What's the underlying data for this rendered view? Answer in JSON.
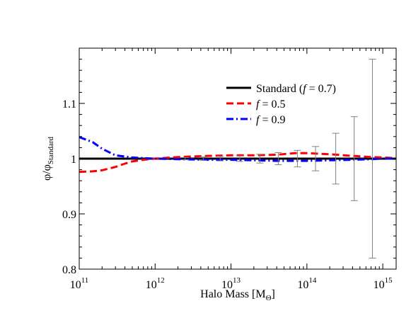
{
  "chart_data": {
    "type": "line",
    "xlabel": "Halo Mass [M",
    "xlabel_sub": "Θ",
    "xlabel_close": "]",
    "ylabel": "φ/φ",
    "ylabel_sub": "Standard",
    "x_scale": "log",
    "xlim": [
      100000000000.0,
      1500000000000000.0
    ],
    "ylim": [
      0.8,
      1.2
    ],
    "x_ticks": [
      {
        "base": "10",
        "exp": "11",
        "value": 100000000000.0
      },
      {
        "base": "10",
        "exp": "12",
        "value": 1000000000000.0
      },
      {
        "base": "10",
        "exp": "13",
        "value": 10000000000000.0
      },
      {
        "base": "10",
        "exp": "14",
        "value": 100000000000000.0
      },
      {
        "base": "10",
        "exp": "15",
        "value": 1000000000000000.0
      }
    ],
    "y_ticks": [
      {
        "label": "0.8",
        "value": 0.8
      },
      {
        "label": "0.9",
        "value": 0.9
      },
      {
        "label": "1",
        "value": 1.0
      },
      {
        "label": "1.1",
        "value": 1.1
      }
    ],
    "grid": false,
    "legend_position": "top-right",
    "series": [
      {
        "name_pre": "Standard (",
        "name_var": "f",
        "name_post": " = 0.7)",
        "color": "#000000",
        "style": "solid",
        "x": [
          100000000000.0,
          1500000000000000.0
        ],
        "y": [
          1.0,
          1.0
        ]
      },
      {
        "name_pre": "",
        "name_var": "f",
        "name_post": " = 0.5",
        "color": "#ff0000",
        "style": "dashed",
        "x": [
          100000000000.0,
          150000000000.0,
          200000000000.0,
          300000000000.0,
          400000000000.0,
          500000000000.0,
          700000000000.0,
          1000000000000.0,
          2000000000000.0,
          5000000000000.0,
          10000000000000.0,
          20000000000000.0,
          40000000000000.0,
          70000000000000.0,
          100000000000000.0,
          200000000000000.0,
          400000000000000.0,
          700000000000000.0,
          1000000000000000.0,
          1500000000000000.0
        ],
        "y": [
          0.976,
          0.977,
          0.979,
          0.985,
          0.991,
          0.995,
          0.998,
          1.0,
          1.003,
          1.005,
          1.006,
          1.006,
          1.007,
          1.01,
          1.01,
          1.008,
          1.005,
          1.003,
          1.002,
          1.001
        ]
      },
      {
        "name_pre": "",
        "name_var": "f",
        "name_post": " = 0.9",
        "color": "#0000ff",
        "style": "dash-dot",
        "x": [
          100000000000.0,
          150000000000.0,
          200000000000.0,
          300000000000.0,
          500000000000.0,
          700000000000.0,
          1000000000000.0,
          2000000000000.0,
          5000000000000.0,
          10000000000000.0,
          20000000000000.0,
          40000000000000.0,
          70000000000000.0,
          100000000000000.0,
          200000000000000.0,
          400000000000000.0,
          700000000000000.0,
          1000000000000000.0,
          1500000000000000.0
        ],
        "y": [
          1.039,
          1.03,
          1.018,
          1.006,
          1.002,
          1.001,
          1.0,
          0.999,
          0.998,
          0.998,
          0.997,
          0.996,
          0.996,
          0.996,
          0.997,
          0.998,
          0.999,
          1.0,
          1.0
        ]
      }
    ],
    "error_bars": {
      "color": "#808080",
      "x": [
        2500000000000.0,
        4300000000000.0,
        7200000000000.0,
        13000000000000.0,
        24000000000000.0,
        42000000000000.0,
        75000000000000.0,
        130000000000000.0,
        240000000000000.0,
        420000000000000.0,
        730000000000000.0
      ],
      "y": [
        1.0,
        1.0,
        1.0,
        1.0,
        1.0,
        1.0,
        1.0,
        1.0,
        1.0,
        1.0,
        1.0
      ],
      "err": [
        0.002,
        0.003,
        0.004,
        0.005,
        0.008,
        0.011,
        0.015,
        0.022,
        0.046,
        0.076,
        0.18
      ]
    }
  }
}
